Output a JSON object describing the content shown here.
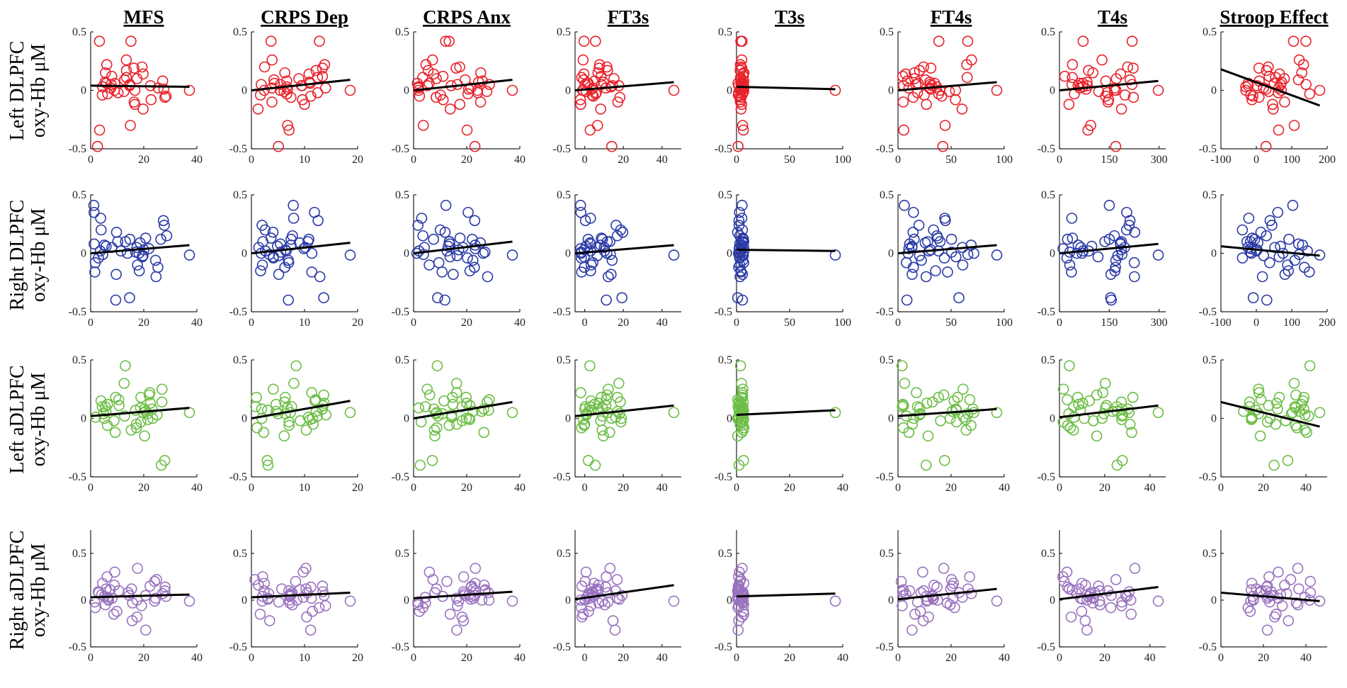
{
  "chart_data": {
    "type": "scatter",
    "columns": [
      {
        "title": "MFS",
        "xlim": [
          0,
          40
        ],
        "xticks": [
          0,
          20,
          40
        ]
      },
      {
        "title": "CRPS Dep",
        "xlim": [
          0,
          20
        ],
        "xticks": [
          0,
          10,
          20
        ]
      },
      {
        "title": "CRPS Anx",
        "xlim": [
          0,
          40
        ],
        "xticks": [
          0,
          20,
          40
        ]
      },
      {
        "title": "FT3s",
        "xlim": [
          -5,
          50
        ],
        "xticks": [
          0,
          20,
          40
        ]
      },
      {
        "title": "T3s",
        "xlim": [
          0,
          100
        ],
        "xticks": [
          0,
          50,
          100
        ]
      },
      {
        "title": "FT4s",
        "xlim": [
          0,
          100
        ],
        "xticks": [
          0,
          50,
          100
        ]
      },
      {
        "title": "T4s",
        "xlim": [
          0,
          320
        ],
        "xticks": [
          0,
          150,
          300
        ]
      },
      {
        "title": "Stroop Effect",
        "xlim": [
          -100,
          200
        ],
        "xticks": [
          -100,
          0,
          100,
          200
        ]
      }
    ],
    "rows": [
      {
        "label_line1": "Left DLPFC",
        "label_line2": "oxy-Hb μM",
        "color": "#e8222b",
        "ylim": [
          -0.5,
          0.5
        ],
        "yticks": [
          -0.5,
          0,
          0.5
        ],
        "ytick_labels": [
          "-0.5",
          "0",
          "0.5"
        ],
        "fits": [
          [
            0.04,
            0.03
          ],
          [
            0.0,
            0.09
          ],
          [
            0.0,
            0.09
          ],
          [
            0.0,
            0.07
          ],
          [
            0.03,
            0.01
          ],
          [
            0.0,
            0.07
          ],
          [
            0.0,
            0.08
          ],
          [
            0.18,
            -0.13
          ]
        ],
        "xmaxes": [
          40,
          20,
          40,
          50,
          100,
          100,
          320,
          200
        ]
      },
      {
        "label_line1": "Right DLPFC",
        "label_line2": "oxy-Hb μM",
        "color": "#2b3ba6",
        "ylim": [
          -0.5,
          0.5
        ],
        "yticks": [
          -0.5,
          0,
          0.5
        ],
        "ytick_labels": [
          "-0.5",
          "0",
          "0.5"
        ],
        "fits": [
          [
            0.0,
            0.07
          ],
          [
            0.0,
            0.09
          ],
          [
            0.0,
            0.1
          ],
          [
            0.0,
            0.07
          ],
          [
            0.03,
            0.02
          ],
          [
            0.0,
            0.07
          ],
          [
            0.0,
            0.08
          ],
          [
            0.06,
            -0.02
          ]
        ],
        "xmaxes": [
          40,
          20,
          40,
          50,
          100,
          100,
          320,
          200
        ]
      },
      {
        "label_line1": "Left aDLPFC",
        "label_line2": "oxy-Hb μM",
        "color": "#6cbd45",
        "ylim": [
          -0.5,
          0.5
        ],
        "yticks": [
          -0.5,
          0,
          0.5
        ],
        "ytick_labels": [
          "-0.5",
          "0",
          "0.5"
        ],
        "fits": [
          [
            0.02,
            0.09
          ],
          [
            0.0,
            0.15
          ],
          [
            0.0,
            0.14
          ],
          [
            0.02,
            0.11
          ],
          [
            0.03,
            0.07
          ],
          [
            0.02,
            0.08
          ],
          [
            0.01,
            0.11
          ],
          [
            0.14,
            -0.07
          ]
        ],
        "xmaxes": [
          40,
          20,
          40,
          50,
          40,
          40,
          47,
          0
        ]
      },
      {
        "label_line1": "Right aDLPFC",
        "label_line2": "oxy-Hb μM",
        "color": "#9a72bf",
        "ylim": [
          -0.5,
          0.75
        ],
        "yticks": [
          -0.5,
          0,
          0.5
        ],
        "ytick_labels": [
          "-0.5",
          "0",
          "0.5"
        ],
        "fits": [
          [
            0.03,
            0.06
          ],
          [
            0.03,
            0.08
          ],
          [
            0.02,
            0.09
          ],
          [
            0.01,
            0.16
          ],
          [
            0.04,
            0.07
          ],
          [
            0.01,
            0.12
          ],
          [
            0.01,
            0.14
          ],
          [
            0.08,
            -0.01
          ]
        ],
        "xmaxes": [
          40,
          20,
          40,
          50,
          40,
          40,
          47,
          0
        ]
      }
    ],
    "row_xaxes": [
      [
        [
          0,
          40
        ],
        [
          0,
          20
        ],
        [
          0,
          40
        ],
        [
          -5,
          50
        ],
        [
          0,
          100
        ],
        [
          0,
          100
        ],
        [
          0,
          320
        ],
        [
          -100,
          200
        ]
      ],
      [
        [
          0,
          40
        ],
        [
          0,
          20
        ],
        [
          0,
          40
        ],
        [
          -5,
          50
        ],
        [
          0,
          100
        ],
        [
          0,
          100
        ],
        [
          0,
          320
        ],
        [
          -100,
          200
        ]
      ],
      [
        [
          0,
          40
        ],
        [
          0,
          20
        ],
        [
          0,
          40
        ],
        [
          -5,
          50
        ],
        [
          0,
          40
        ],
        [
          0,
          40
        ],
        [
          0,
          47
        ],
        [
          0,
          50
        ]
      ],
      [
        [
          0,
          40
        ],
        [
          0,
          20
        ],
        [
          0,
          40
        ],
        [
          -5,
          50
        ],
        [
          0,
          40
        ],
        [
          0,
          40
        ],
        [
          0,
          47
        ],
        [
          0,
          50
        ]
      ]
    ],
    "row_xticks": [
      [
        [
          0,
          20,
          40
        ],
        [
          0,
          10,
          20
        ],
        [
          0,
          20,
          40
        ],
        [
          0,
          20,
          40
        ],
        [
          0,
          50,
          100
        ],
        [
          0,
          50,
          100
        ],
        [
          0,
          150,
          300
        ],
        [
          -100,
          0,
          100,
          200
        ]
      ],
      [
        [
          0,
          20,
          40
        ],
        [
          0,
          10,
          20
        ],
        [
          0,
          20,
          40
        ],
        [
          0,
          20,
          40
        ],
        [
          0,
          50,
          100
        ],
        [
          0,
          50,
          100
        ],
        [
          0,
          150,
          300
        ],
        [
          -100,
          0,
          100,
          200
        ]
      ],
      [
        [
          0,
          20,
          40
        ],
        [
          0,
          10,
          20
        ],
        [
          0,
          20,
          40
        ],
        [
          0,
          20,
          40
        ],
        [
          0,
          20,
          40
        ],
        [
          0,
          20,
          40
        ],
        [
          0,
          20,
          40
        ],
        [
          0,
          20,
          40
        ]
      ],
      [
        [
          0,
          20,
          40
        ],
        [
          0,
          10,
          20
        ],
        [
          0,
          20,
          40
        ],
        [
          0,
          20,
          40
        ],
        [
          0,
          20,
          40
        ],
        [
          0,
          20,
          40
        ],
        [
          0,
          20,
          40
        ],
        [
          0,
          20,
          40
        ]
      ]
    ],
    "row_xtick_labels": [
      [
        [
          "0",
          "20",
          "40"
        ],
        [
          "0",
          "10",
          "20"
        ],
        [
          "0",
          "20",
          "40"
        ],
        [
          "0",
          "20",
          "40"
        ],
        [
          "0",
          "50",
          "100"
        ],
        [
          "0",
          "50",
          "100"
        ],
        [
          "0",
          "150",
          "300"
        ],
        [
          "-100",
          "0",
          "100",
          "200"
        ]
      ],
      [
        [
          "0",
          "20",
          "40"
        ],
        [
          "0",
          "10",
          "20"
        ],
        [
          "0",
          "20",
          "40"
        ],
        [
          "0",
          "20",
          "40"
        ],
        [
          "0",
          "50",
          "100"
        ],
        [
          "0",
          "50",
          "100"
        ],
        [
          "0",
          "150",
          "300"
        ],
        [
          "-100",
          "0",
          "100",
          "200"
        ]
      ],
      [
        [
          "0",
          "20",
          "40"
        ],
        [
          "0",
          "10",
          "20"
        ],
        [
          "0",
          "20",
          "40"
        ],
        [
          "0",
          "20",
          "40"
        ],
        [
          "0",
          "20",
          "40"
        ],
        [
          "0",
          "20",
          "40"
        ],
        [
          "0",
          "20",
          "40"
        ],
        [
          "0",
          "20",
          "40"
        ]
      ],
      [
        [
          "0",
          "20",
          "40"
        ],
        [
          "0",
          "10",
          "20"
        ],
        [
          "0",
          "20",
          "40"
        ],
        [
          "0",
          "20",
          "40"
        ],
        [
          "0",
          "20",
          "40"
        ],
        [
          "0",
          "20",
          "40"
        ],
        [
          "0",
          "20",
          "40"
        ],
        [
          "0",
          "20",
          "40"
        ]
      ]
    ],
    "y_values_row1": [
      0.05,
      0.0,
      -0.04,
      0.12,
      0.26,
      0.42,
      -0.34,
      0.02,
      0.1,
      -0.01,
      0.06,
      -0.08,
      0.2,
      0.42,
      -0.3,
      0.05,
      -0.16,
      0.15,
      -0.12,
      0.04,
      0.22,
      -0.48,
      0.08,
      -0.06,
      0.03,
      0.17,
      0.01,
      -0.03,
      0.09,
      -0.1,
      0.14,
      0.0,
      0.06,
      -0.05,
      0.11,
      0.02,
      0.19,
      -0.02,
      0.07,
      0.04
    ],
    "y_values_row2": [
      0.05,
      -0.03,
      0.12,
      0.3,
      0.41,
      -0.38,
      0.0,
      0.08,
      -0.15,
      0.2,
      0.02,
      -0.18,
      0.1,
      -0.02,
      0.24,
      -0.12,
      0.06,
      0.35,
      -0.06,
      0.15,
      -0.2,
      0.04,
      0.01,
      0.12,
      -0.08,
      0.18,
      0.0,
      -0.04,
      0.09,
      0.02,
      -0.4,
      0.28,
      -0.1,
      0.07,
      0.03,
      0.13,
      -0.16,
      0.05,
      -0.01,
      0.1
    ],
    "y_values_row3": [
      0.02,
      0.1,
      -0.05,
      0.18,
      0.45,
      -0.4,
      0.06,
      0.12,
      -0.1,
      0.3,
      0.0,
      0.22,
      0.08,
      -0.15,
      0.15,
      0.04,
      -0.02,
      0.25,
      0.09,
      -0.36,
      0.05,
      0.14,
      -0.06,
      0.2,
      0.01,
      0.11,
      -0.08,
      0.16,
      0.03,
      0.07,
      -0.12,
      0.1,
      0.0,
      0.18,
      -0.03,
      0.06,
      0.13,
      -0.01,
      0.08,
      0.04
    ],
    "y_values_row4": [
      0.05,
      -0.02,
      0.12,
      0.2,
      0.34,
      -0.32,
      0.0,
      0.08,
      -0.15,
      0.25,
      0.02,
      0.16,
      -0.08,
      0.1,
      0.04,
      -0.22,
      0.14,
      0.3,
      0.06,
      -0.05,
      0.18,
      0.01,
      -0.12,
      0.09,
      0.03,
      0.22,
      -0.03,
      0.12,
      0.0,
      0.07,
      -0.18,
      0.15,
      0.05,
      -0.01,
      0.1,
      0.02,
      -0.06,
      0.11,
      0.04,
      0.08
    ]
  }
}
